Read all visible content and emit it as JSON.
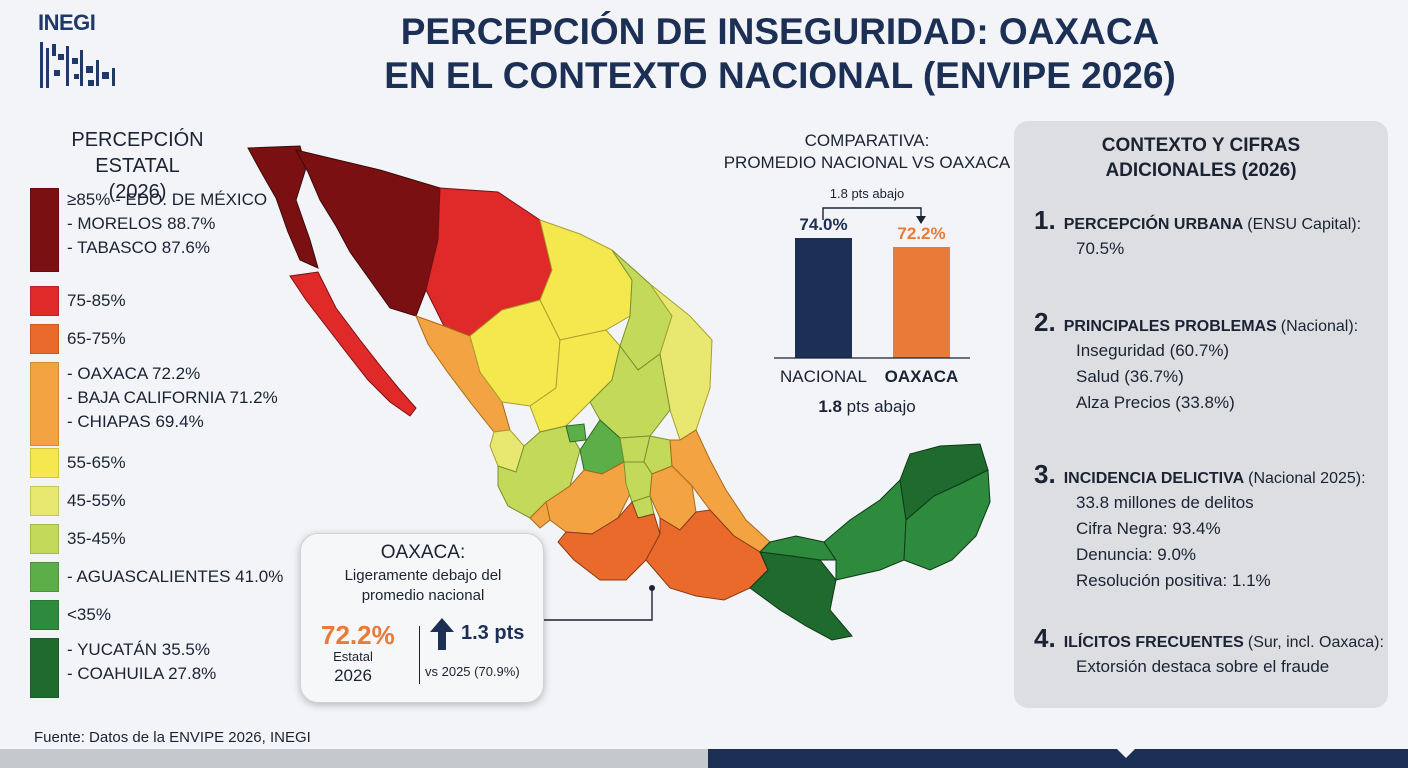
{
  "logo": {
    "text": "INEGI"
  },
  "title": {
    "line1": "PERCEPCIÓN DE INSEGURIDAD: OAXACA",
    "line2": "EN EL CONTEXTO NACIONAL (ENVIPE 2026)"
  },
  "colors": {
    "c85": "#7a1012",
    "c75": "#e02a2a",
    "c65": "#ea6a2c",
    "c_oax": "#f3a341",
    "c55": "#f5e84f",
    "c45": "#e8e870",
    "c35": "#c3d95a",
    "c_ags": "#5cae48",
    "c_lt35": "#2e8a3c",
    "c_yuc": "#1f6b2e",
    "navy": "#1c2f55",
    "orange": "#e97a38"
  },
  "legend": {
    "title_line1": "PERCEPCIÓN ESTATAL",
    "title_line2": "(2026)",
    "items": [
      {
        "lines": [
          "≥85% - EDO. DE MÉXICO",
          "- MORELOS 88.7%",
          "- TABASCO 87.6%"
        ],
        "color": "#7a1012"
      },
      {
        "lines": [
          "75-85%"
        ],
        "color": "#e02a2a"
      },
      {
        "lines": [
          "65-75%"
        ],
        "color": "#ea6a2c"
      },
      {
        "lines": [
          "- OAXACA 72.2%",
          "- BAJA CALIFORNIA 71.2%",
          "- CHIAPAS 69.4%"
        ],
        "color": "#f3a341"
      },
      {
        "lines": [
          "55-65%"
        ],
        "color": "#f5e84f"
      },
      {
        "lines": [
          "45-55%"
        ],
        "color": "#e8e870"
      },
      {
        "lines": [
          "35-45%"
        ],
        "color": "#c3d95a"
      },
      {
        "lines": [
          "- AGUASCALIENTES 41.0%"
        ],
        "color": "#5cae48"
      },
      {
        "lines": [
          "<35%"
        ],
        "color": "#2e8a3c"
      },
      {
        "lines": [
          "- YUCATÁN 35.5%",
          "- COAHUILA 27.8%"
        ],
        "color": "#1f6b2e"
      }
    ]
  },
  "chart_data": {
    "type": "bar",
    "title": "COMPARATIVA:\nPROMEDIO NACIONAL VS OAXACA",
    "categories": [
      "NACIONAL",
      "OAXACA"
    ],
    "values": [
      74.0,
      72.2
    ],
    "value_labels": [
      "74.0%",
      "72.2%"
    ],
    "colors": [
      "#1c2f55",
      "#e97a38"
    ],
    "annotation_top": "1.8 pts abajo",
    "annotation_bottom_bold": "1.8",
    "annotation_bottom_rest": " pts abajo",
    "ylim": [
      0,
      100
    ]
  },
  "context": {
    "title_line1": "CONTEXTO Y CIFRAS",
    "title_line2": "ADICIONALES (2026)",
    "items": [
      {
        "num": "1.",
        "label": "PERCEPCIÓN URBANA",
        "sub": "(ENSU Capital):",
        "lines": [
          "70.5%"
        ]
      },
      {
        "num": "2.",
        "label": "PRINCIPALES PROBLEMAS",
        "sub": "(Nacional):",
        "lines": [
          "Inseguridad (60.7%)",
          "Salud (36.7%)",
          "Alza Precios (33.8%)"
        ]
      },
      {
        "num": "3.",
        "label": "INCIDENCIA DELICTIVA",
        "sub": "(Nacional 2025):",
        "lines": [
          "33.8 millones de delitos",
          "Cifra Negra: 93.4%",
          "Denuncia: 9.0%",
          "Resolución positiva: 1.1%"
        ]
      },
      {
        "num": "4.",
        "label": "ILÍCITOS FRECUENTES",
        "sub": "(Sur, incl. Oaxaca):",
        "lines": [
          "Extorsión destaca sobre el fraude"
        ]
      }
    ]
  },
  "callout": {
    "title": "OAXACA:",
    "subtitle_line1": "Ligeramente debajo del",
    "subtitle_line2": "promedio nacional",
    "value": "72.2%",
    "value_label": "Estatal",
    "year": "2026",
    "delta": "1.3 pts",
    "previous": "vs 2025 (70.9%)"
  },
  "source": "Fuente: Datos de la ENVIPE 2026, INEGI"
}
